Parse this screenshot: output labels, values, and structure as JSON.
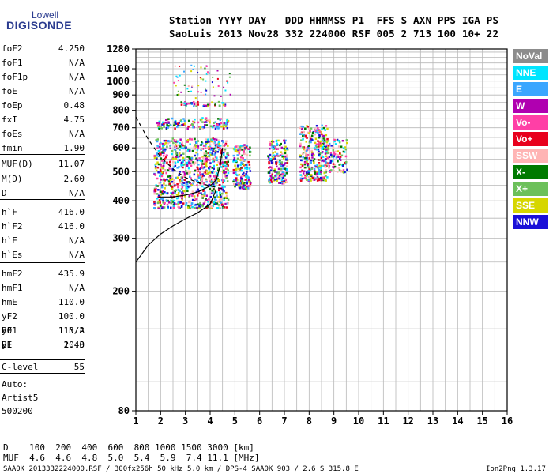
{
  "logo": {
    "line1": "Lowell",
    "line2": "DIGISONDE"
  },
  "header": {
    "line1": "Station YYYY DAY   DDD HHMMSS P1  FFS S AXN PPS IGA PS",
    "line2": "SaoLuis 2013 Nov28 332 224000 RSF 005 2 713 100 10+ 22"
  },
  "params": [
    {
      "name": "foF2",
      "value": "4.250"
    },
    {
      "name": "foF1",
      "value": "N/A"
    },
    {
      "name": "foF1p",
      "value": "N/A"
    },
    {
      "name": "foE",
      "value": "N/A"
    },
    {
      "name": "foEp",
      "value": "0.48"
    },
    {
      "name": "fxI",
      "value": "4.75"
    },
    {
      "name": "foEs",
      "value": "N/A"
    },
    {
      "name": "fmin",
      "value": "1.90"
    },
    {
      "name": "MUF(D)",
      "value": "11.07"
    },
    {
      "name": "M(D)",
      "value": "2.60"
    },
    {
      "name": "D",
      "value": "N/A"
    },
    {
      "name": "h`F",
      "value": "416.0"
    },
    {
      "name": "h`F2",
      "value": "416.0"
    },
    {
      "name": "h`E",
      "value": "N/A"
    },
    {
      "name": "h`Es",
      "value": "N/A"
    },
    {
      "name": "hmF2",
      "value": "435.9"
    },
    {
      "name": "hmF1",
      "value": "N/A"
    },
    {
      "name": "hmE",
      "value": "110.0"
    },
    {
      "name": "yF2",
      "value": "100.0"
    },
    {
      "name": "yF1",
      "value": "N/A"
    },
    {
      "name": "yE",
      "value": "20.0"
    },
    {
      "name": "B0",
      "value": "113.2"
    },
    {
      "name": "B1",
      "value": "1.43"
    },
    {
      "name": "C-level",
      "value": "55"
    }
  ],
  "auto": {
    "line1": "Auto:",
    "line2": "Artist5",
    "line3": "500200"
  },
  "legend": [
    {
      "label": "NoVal",
      "color": "#8c8c8c"
    },
    {
      "label": "NNE",
      "color": "#00e5ff"
    },
    {
      "label": "E",
      "color": "#3aa6ff"
    },
    {
      "label": "W",
      "color": "#b000b0"
    },
    {
      "label": "Vo-",
      "color": "#ff3fa6"
    },
    {
      "label": "Vo+",
      "color": "#e8001c"
    },
    {
      "label": "SSW",
      "color": "#ffb4b4"
    },
    {
      "label": "X-",
      "color": "#007a00"
    },
    {
      "label": "X+",
      "color": "#6cc05a"
    },
    {
      "label": "SSE",
      "color": "#d6d600"
    },
    {
      "label": "NNW",
      "color": "#1a10d8"
    }
  ],
  "footer": {
    "d_line": "D    100  200  400  600  800 1000 1500 3000 [km]",
    "muf_line": "MUF  4.6  4.6  4.8  5.0  5.4  5.9  7.4 11.1 [MHz]",
    "file_line": "SAA0K_2013332224000.RSF / 300fx256h 50 kHz 5.0 km / DPS-4 SAA0K 903 / 2.6 S 315.8 E",
    "version": "Ion2Png 1.3.17"
  },
  "chart_data": {
    "type": "scatter",
    "x_ticks": [
      "1",
      "2",
      "3",
      "4",
      "5",
      "6",
      "7",
      "8",
      "9",
      "10",
      "11",
      "12",
      "13",
      "14",
      "15",
      "16"
    ],
    "y_ticks": [
      "80",
      "200",
      "300",
      "400",
      "500",
      "600",
      "700",
      "800",
      "900",
      "1000",
      "1100",
      "1280"
    ],
    "xlim": [
      1,
      16
    ],
    "y_scale": "log",
    "ylim": [
      80,
      1280
    ],
    "grid": true,
    "legend_position": "right",
    "echo_clusters": [
      {
        "f_min": 1.7,
        "f_max": 4.7,
        "h_min": 380,
        "h_max": 650,
        "density": 1.0
      },
      {
        "f_min": 4.9,
        "f_max": 5.6,
        "h_min": 440,
        "h_max": 620,
        "density": 0.8
      },
      {
        "f_min": 6.3,
        "f_max": 7.1,
        "h_min": 460,
        "h_max": 640,
        "density": 0.8
      },
      {
        "f_min": 7.6,
        "f_max": 8.7,
        "h_min": 470,
        "h_max": 720,
        "density": 0.9
      },
      {
        "f_min": 8.6,
        "f_max": 9.5,
        "h_min": 500,
        "h_max": 650,
        "density": 0.4
      },
      {
        "f_min": 1.8,
        "f_max": 4.7,
        "h_min": 700,
        "h_max": 760,
        "density": 0.15
      },
      {
        "f_min": 2.8,
        "f_max": 4.6,
        "h_min": 830,
        "h_max": 860,
        "density": 0.08
      }
    ],
    "f2_trace": [
      {
        "f": 1.9,
        "h": 412
      },
      {
        "f": 2.5,
        "h": 412
      },
      {
        "f": 3.0,
        "h": 418
      },
      {
        "f": 3.5,
        "h": 428
      },
      {
        "f": 4.0,
        "h": 448
      },
      {
        "f": 4.25,
        "h": 470
      },
      {
        "f": 4.4,
        "h": 520
      },
      {
        "f": 4.5,
        "h": 600
      }
    ],
    "profile": [
      {
        "f": 1.0,
        "h": 250
      },
      {
        "f": 1.5,
        "h": 285
      },
      {
        "f": 2.0,
        "h": 310
      },
      {
        "f": 2.5,
        "h": 330
      },
      {
        "f": 3.0,
        "h": 348
      },
      {
        "f": 3.5,
        "h": 365
      },
      {
        "f": 4.0,
        "h": 390
      },
      {
        "f": 4.25,
        "h": 436
      }
    ],
    "muf_curve": [
      {
        "f": 1.0,
        "h": 760
      },
      {
        "f": 1.5,
        "h": 640
      },
      {
        "f": 2.0,
        "h": 560
      },
      {
        "f": 2.5,
        "h": 510
      },
      {
        "f": 3.0,
        "h": 478
      },
      {
        "f": 3.5,
        "h": 460
      },
      {
        "f": 4.0,
        "h": 448
      },
      {
        "f": 4.5,
        "h": 438
      }
    ]
  }
}
